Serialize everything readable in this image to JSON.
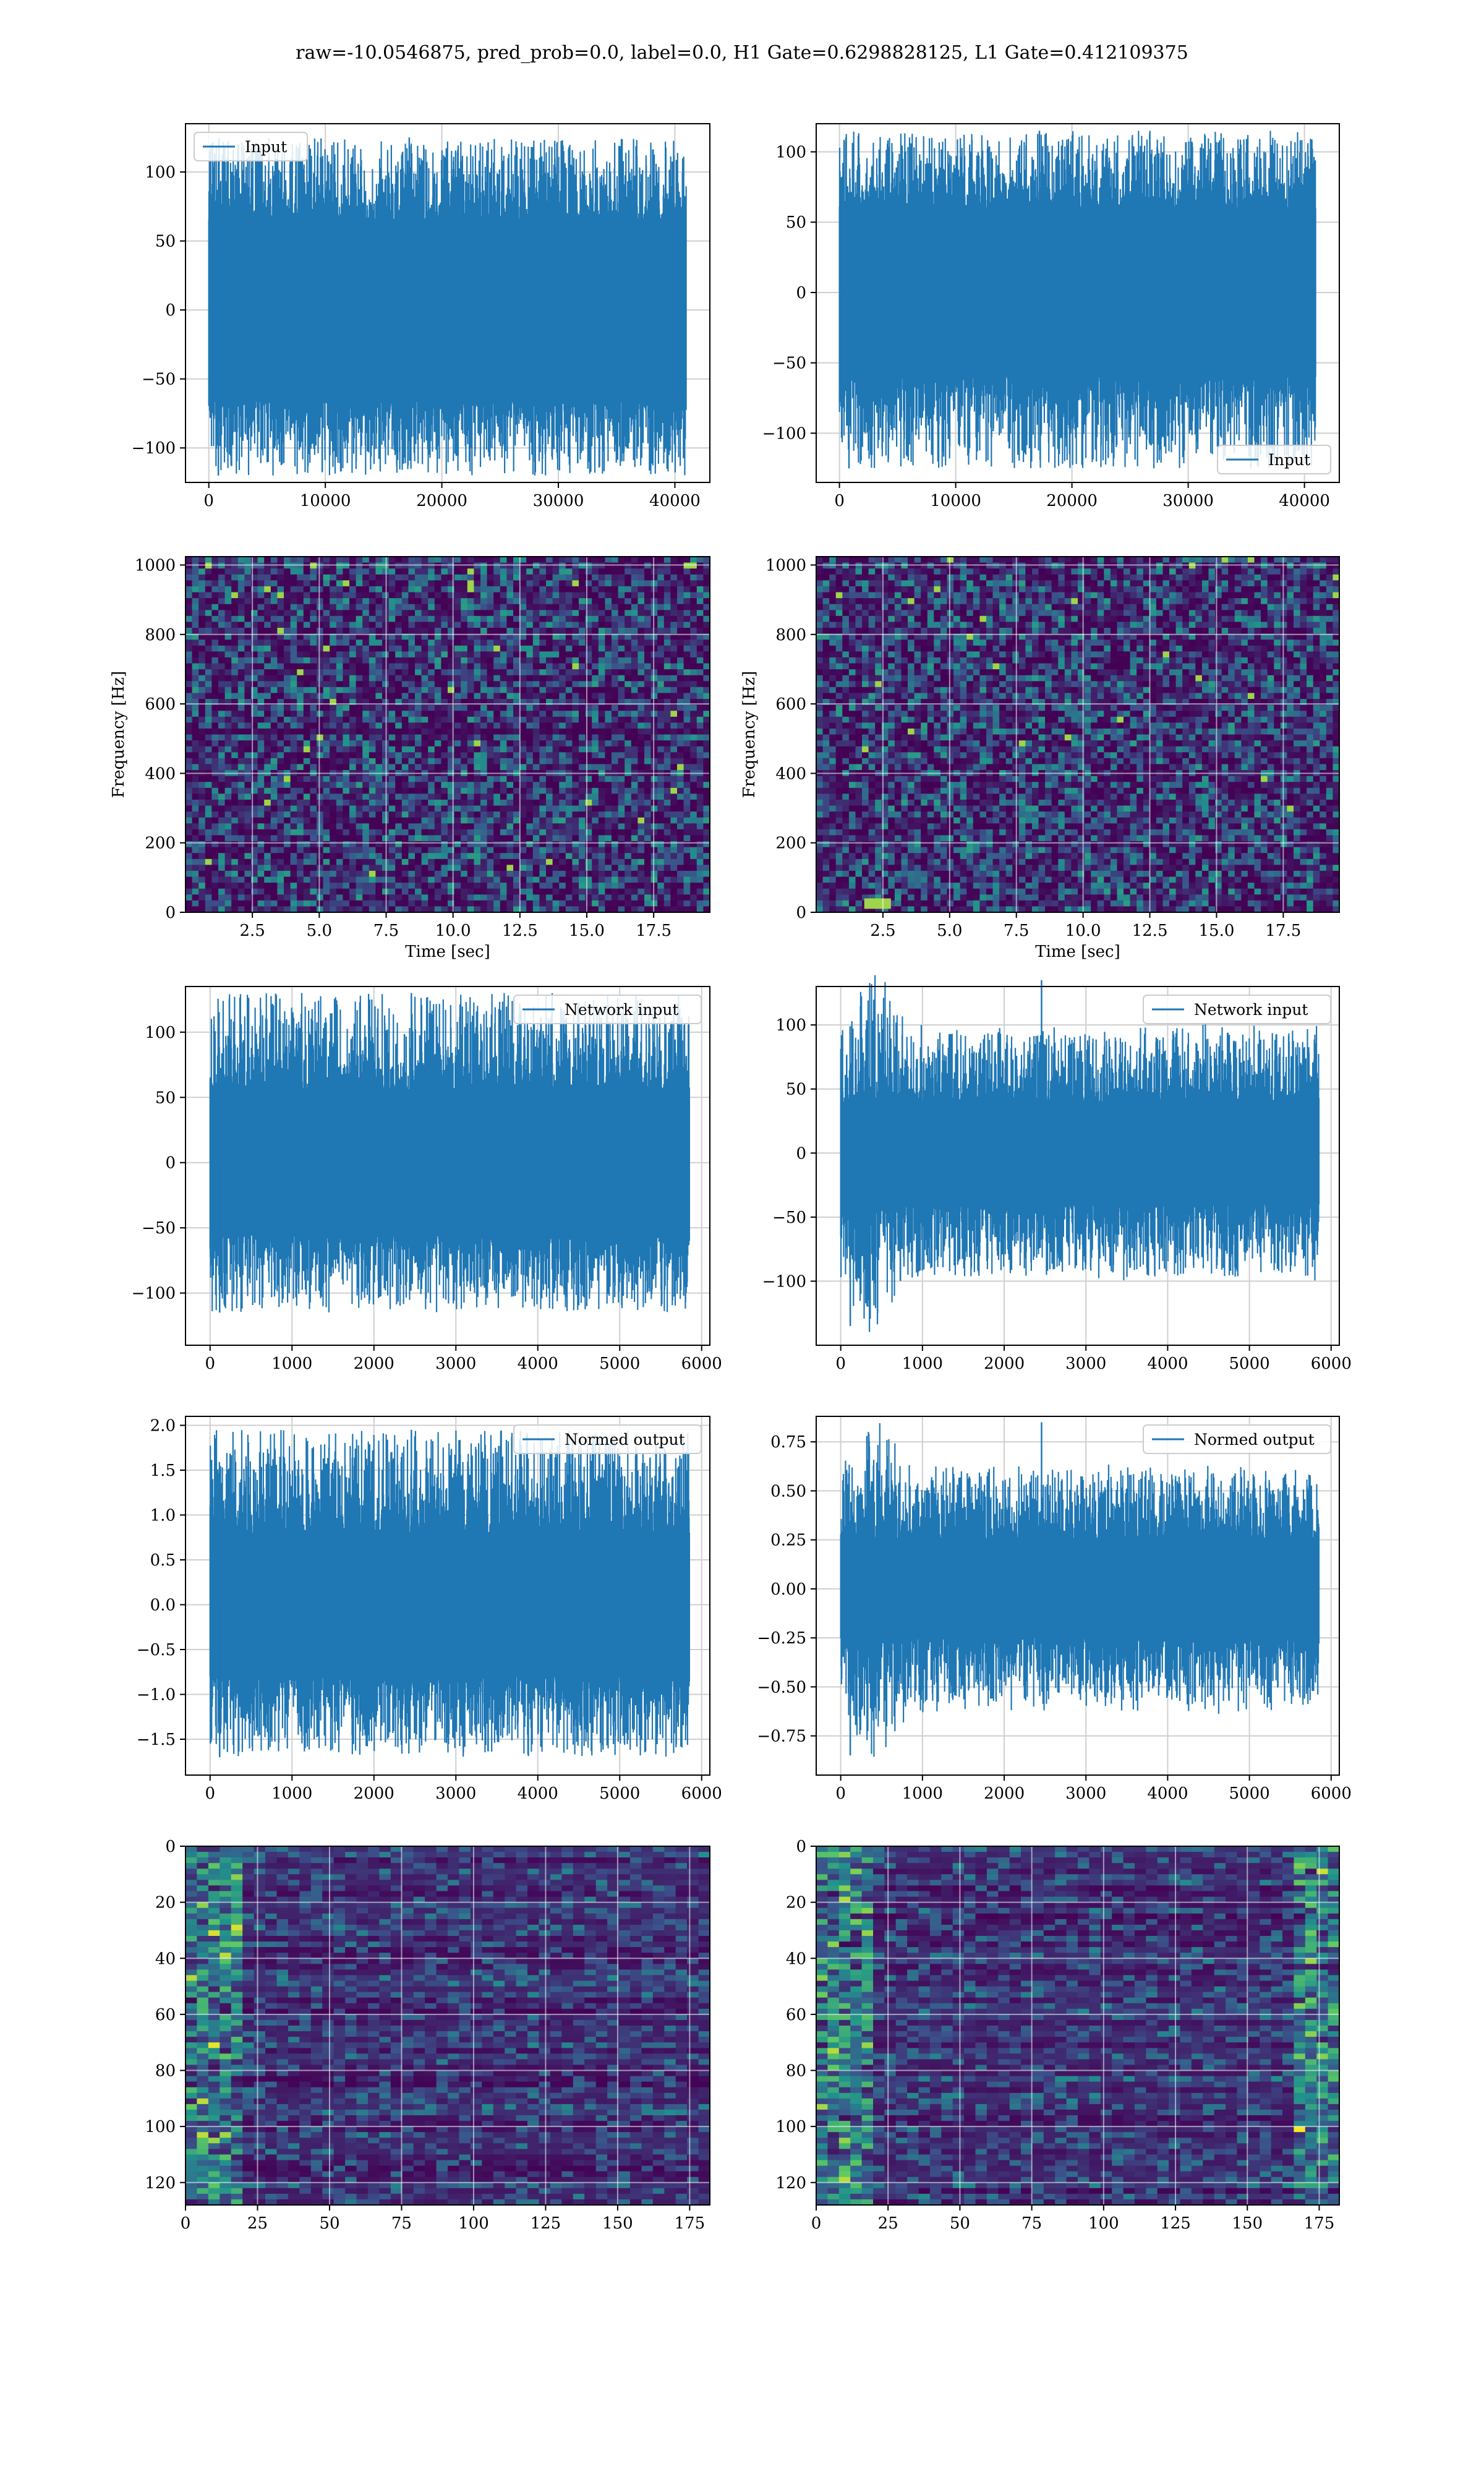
{
  "suptitle": "raw=-10.0546875, pred_prob=0.0, label=0.0, H1 Gate=0.6298828125, L1 Gate=0.412109375",
  "colors": {
    "line": "#1f77b4",
    "grid": "#cfcfcf",
    "viridis_low": "#440154",
    "viridis_mid": "#21918c",
    "viridis_high": "#fde725"
  },
  "chart_data": [
    {
      "id": "input-h1",
      "type": "line",
      "signal": "noise",
      "xticks": [
        "0",
        "10000",
        "20000",
        "30000",
        "40000"
      ],
      "xlim": [
        -2000,
        43000
      ],
      "xticks_v": [
        0,
        10000,
        20000,
        30000,
        40000
      ],
      "yticks": [
        "−100",
        "−50",
        "0",
        "50",
        "100"
      ],
      "ylim": [
        -125,
        135
      ],
      "yticks_v": [
        -100,
        -50,
        0,
        50,
        100
      ],
      "x": [
        0,
        40960
      ],
      "band": [
        -65,
        65
      ],
      "peak": [
        -120,
        125
      ],
      "legend": {
        "label": "Input",
        "position": "upper-left"
      },
      "xlabel": "",
      "ylabel": ""
    },
    {
      "id": "input-l1",
      "type": "line",
      "signal": "noise",
      "xticks": [
        "0",
        "10000",
        "20000",
        "30000",
        "40000"
      ],
      "xlim": [
        -2000,
        43000
      ],
      "xticks_v": [
        0,
        10000,
        20000,
        30000,
        40000
      ],
      "yticks": [
        "−100",
        "−50",
        "0",
        "50",
        "100"
      ],
      "ylim": [
        -135,
        120
      ],
      "yticks_v": [
        -100,
        -50,
        0,
        50,
        100
      ],
      "x": [
        0,
        40960
      ],
      "band": [
        -60,
        60
      ],
      "peak": [
        -125,
        115
      ],
      "legend": {
        "label": "Input",
        "position": "lower-right"
      },
      "xlabel": "",
      "ylabel": ""
    },
    {
      "id": "spec-h1",
      "type": "heatmap",
      "variant": "spectrogram",
      "xticks": [
        "2.5",
        "5.0",
        "7.5",
        "10.0",
        "12.5",
        "15.0",
        "17.5"
      ],
      "xlim": [
        0,
        19.6
      ],
      "xticks_v": [
        2.5,
        5,
        7.5,
        10,
        12.5,
        15,
        17.5
      ],
      "yticks": [
        "0",
        "200",
        "400",
        "600",
        "800",
        "1000"
      ],
      "ylim": [
        0,
        1024
      ],
      "yticks_v": [
        0,
        200,
        400,
        600,
        800,
        1000
      ],
      "xlabel": "Time [sec]",
      "ylabel": "Frequency [Hz]"
    },
    {
      "id": "spec-l1",
      "type": "heatmap",
      "variant": "spectrogram",
      "xticks": [
        "2.5",
        "5.0",
        "7.5",
        "10.0",
        "12.5",
        "15.0",
        "17.5"
      ],
      "xlim": [
        0,
        19.6
      ],
      "xticks_v": [
        2.5,
        5,
        7.5,
        10,
        12.5,
        15,
        17.5
      ],
      "yticks": [
        "0",
        "200",
        "400",
        "600",
        "800",
        "1000"
      ],
      "ylim": [
        0,
        1024
      ],
      "yticks_v": [
        0,
        200,
        400,
        600,
        800,
        1000
      ],
      "xlabel": "Time [sec]",
      "ylabel": "Frequency [Hz]"
    },
    {
      "id": "net-h1",
      "type": "line",
      "signal": "noise",
      "xticks": [
        "0",
        "1000",
        "2000",
        "3000",
        "4000",
        "5000",
        "6000"
      ],
      "xlim": [
        -300,
        6100
      ],
      "xticks_v": [
        0,
        1000,
        2000,
        3000,
        4000,
        5000,
        6000
      ],
      "yticks": [
        "−100",
        "−50",
        "0",
        "50",
        "100"
      ],
      "ylim": [
        -140,
        135
      ],
      "yticks_v": [
        -100,
        -50,
        0,
        50,
        100
      ],
      "x": [
        0,
        5850
      ],
      "band": [
        -55,
        55
      ],
      "peak": [
        -115,
        130
      ],
      "legend": {
        "label": "Network input",
        "position": "upper-right"
      },
      "xlabel": "",
      "ylabel": ""
    },
    {
      "id": "net-l1",
      "type": "line",
      "signal": "chirp",
      "xticks": [
        "0",
        "1000",
        "2000",
        "3000",
        "4000",
        "5000",
        "6000"
      ],
      "xlim": [
        -300,
        6100
      ],
      "xticks_v": [
        0,
        1000,
        2000,
        3000,
        4000,
        5000,
        6000
      ],
      "yticks": [
        "−100",
        "−50",
        "0",
        "50",
        "100"
      ],
      "ylim": [
        -150,
        130
      ],
      "yticks_v": [
        -100,
        -50,
        0,
        50,
        100
      ],
      "x": [
        0,
        5850
      ],
      "band": [
        -40,
        40
      ],
      "peak": [
        -135,
        135
      ],
      "legend": {
        "label": "Network input",
        "position": "upper-right"
      },
      "xlabel": "",
      "ylabel": ""
    },
    {
      "id": "norm-h1",
      "type": "line",
      "signal": "noise",
      "xticks": [
        "0",
        "1000",
        "2000",
        "3000",
        "4000",
        "5000",
        "6000"
      ],
      "xlim": [
        -300,
        6100
      ],
      "xticks_v": [
        0,
        1000,
        2000,
        3000,
        4000,
        5000,
        6000
      ],
      "yticks": [
        "−1.5",
        "−1.0",
        "−0.5",
        "0.0",
        "0.5",
        "1.0",
        "1.5",
        "2.0"
      ],
      "ylim": [
        -1.9,
        2.1
      ],
      "yticks_v": [
        -1.5,
        -1,
        -0.5,
        0,
        0.5,
        1,
        1.5,
        2
      ],
      "x": [
        0,
        5850
      ],
      "band": [
        -0.8,
        0.8
      ],
      "peak": [
        -1.7,
        1.95
      ],
      "legend": {
        "label": "Normed output",
        "position": "upper-right"
      },
      "xlabel": "",
      "ylabel": ""
    },
    {
      "id": "norm-l1",
      "type": "line",
      "signal": "chirp",
      "xticks": [
        "0",
        "1000",
        "2000",
        "3000",
        "4000",
        "5000",
        "6000"
      ],
      "xlim": [
        -300,
        6100
      ],
      "xticks_v": [
        0,
        1000,
        2000,
        3000,
        4000,
        5000,
        6000
      ],
      "yticks": [
        "−0.75",
        "−0.50",
        "−0.25",
        "0.00",
        "0.25",
        "0.50",
        "0.75"
      ],
      "ylim": [
        -0.95,
        0.88
      ],
      "yticks_v": [
        -0.75,
        -0.5,
        -0.25,
        0,
        0.25,
        0.5,
        0.75
      ],
      "x": [
        0,
        5850
      ],
      "band": [
        -0.25,
        0.25
      ],
      "peak": [
        -0.85,
        0.85
      ],
      "legend": {
        "label": "Normed output",
        "position": "upper-right"
      },
      "xlabel": "",
      "ylabel": ""
    },
    {
      "id": "feat-h1",
      "type": "heatmap",
      "variant": "features",
      "yinvert": true,
      "hot_edge": "left",
      "xticks": [
        "0",
        "25",
        "50",
        "75",
        "100",
        "125",
        "150",
        "175"
      ],
      "xlim": [
        0,
        182
      ],
      "xticks_v": [
        0,
        25,
        50,
        75,
        100,
        125,
        150,
        175
      ],
      "yticks": [
        "0",
        "20",
        "40",
        "60",
        "80",
        "100",
        "120"
      ],
      "ylim": [
        0,
        128
      ],
      "yticks_v": [
        0,
        20,
        40,
        60,
        80,
        100,
        120
      ],
      "xlabel": "",
      "ylabel": ""
    },
    {
      "id": "feat-l1",
      "type": "heatmap",
      "variant": "features",
      "yinvert": true,
      "hot_edge": "both",
      "xticks": [
        "0",
        "25",
        "50",
        "75",
        "100",
        "125",
        "150",
        "175"
      ],
      "xlim": [
        0,
        182
      ],
      "xticks_v": [
        0,
        25,
        50,
        75,
        100,
        125,
        150,
        175
      ],
      "yticks": [
        "0",
        "20",
        "40",
        "60",
        "80",
        "100",
        "120"
      ],
      "ylim": [
        0,
        128
      ],
      "yticks_v": [
        0,
        20,
        40,
        60,
        80,
        100,
        120
      ],
      "xlabel": "",
      "ylabel": ""
    }
  ]
}
